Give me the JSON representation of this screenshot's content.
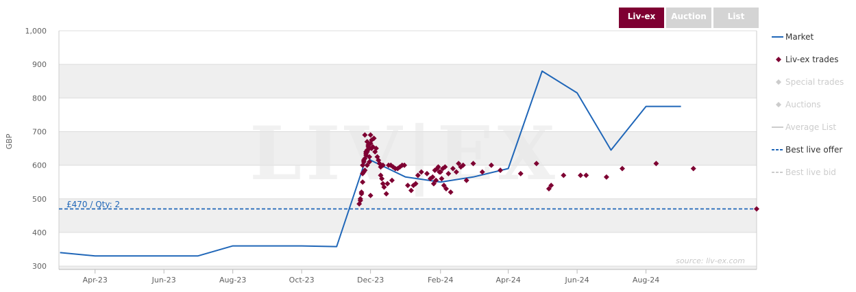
{
  "tabs": [
    {
      "label": "Liv-ex",
      "active": true
    },
    {
      "label": "Auction",
      "active": false
    },
    {
      "label": "List",
      "active": false
    }
  ],
  "legend": [
    {
      "label": "Market",
      "symbol": "line",
      "color": "#1f66b8",
      "enabled": true
    },
    {
      "label": "Liv-ex trades",
      "symbol": "diamond",
      "color": "#7e0032",
      "enabled": true
    },
    {
      "label": "Special trades",
      "symbol": "diamond",
      "color": "#cccccc",
      "enabled": false
    },
    {
      "label": "Auctions",
      "symbol": "diamond",
      "color": "#cccccc",
      "enabled": false
    },
    {
      "label": "Average List",
      "symbol": "line",
      "color": "#cccccc",
      "enabled": false
    },
    {
      "label": "Best live offer",
      "symbol": "dashed",
      "color": "#1f66b8",
      "enabled": true
    },
    {
      "label": "Best live bid",
      "symbol": "dashed",
      "color": "#cccccc",
      "enabled": false
    }
  ],
  "watermark": "LIV|EX",
  "source": "source: liv-ex.com",
  "offer_label": "£470 / Qty: 2",
  "chart_data": {
    "type": "line",
    "ylabel": "GBP",
    "ylim": [
      290,
      1000
    ],
    "yticks": [
      300,
      400,
      500,
      600,
      700,
      800,
      900,
      1000
    ],
    "ytick_labels": [
      "300",
      "400",
      "500",
      "600",
      "700",
      "800",
      "900",
      "1,000"
    ],
    "xlim": [
      "2023-02-28",
      "2024-11-07"
    ],
    "xticks": [
      "2023-04-01",
      "2023-06-01",
      "2023-08-01",
      "2023-10-01",
      "2023-12-01",
      "2024-02-01",
      "2024-04-01",
      "2024-06-01",
      "2024-08-01"
    ],
    "xtick_labels": [
      "Apr-23",
      "Jun-23",
      "Aug-23",
      "Oct-23",
      "Dec-23",
      "Feb-24",
      "Apr-24",
      "Jun-24",
      "Aug-24"
    ],
    "grid": true,
    "legend_position": "right",
    "series": [
      {
        "name": "Market",
        "type": "line",
        "color": "#1f66b8",
        "x": [
          "2023-03-01",
          "2023-04-01",
          "2023-05-01",
          "2023-06-01",
          "2023-07-01",
          "2023-08-01",
          "2023-09-01",
          "2023-10-01",
          "2023-11-01",
          "2023-11-28",
          "2023-12-01",
          "2024-01-01",
          "2024-02-01",
          "2024-03-01",
          "2024-04-01",
          "2024-05-01",
          "2024-06-01",
          "2024-07-01",
          "2024-08-01",
          "2024-09-01"
        ],
        "y": [
          340,
          330,
          330,
          330,
          330,
          360,
          360,
          360,
          358,
          630,
          615,
          565,
          550,
          565,
          590,
          880,
          815,
          645,
          775,
          775
        ]
      },
      {
        "name": "Liv-ex trades",
        "type": "scatter",
        "color": "#7e0032",
        "x": [
          "2023-11-21",
          "2023-11-22",
          "2023-11-23",
          "2023-11-24",
          "2023-11-25",
          "2023-11-26",
          "2023-11-27",
          "2023-11-28",
          "2023-11-29",
          "2023-11-30",
          "2023-12-01",
          "2023-11-22",
          "2023-11-24",
          "2023-11-26",
          "2023-11-28",
          "2023-11-30",
          "2023-12-02",
          "2023-11-23",
          "2023-11-25",
          "2023-11-27",
          "2023-11-29",
          "2023-12-01",
          "2023-12-03",
          "2023-11-24",
          "2023-11-26",
          "2023-11-28",
          "2023-11-30",
          "2023-12-02",
          "2023-12-04",
          "2023-11-25",
          "2023-11-27",
          "2023-11-29",
          "2023-12-01",
          "2023-11-28",
          "2023-11-30",
          "2023-12-05",
          "2023-12-06",
          "2023-12-07",
          "2023-12-08",
          "2023-12-09",
          "2023-12-10",
          "2023-12-11",
          "2023-12-12",
          "2023-12-13",
          "2023-12-15",
          "2023-12-17",
          "2023-12-19",
          "2023-12-21",
          "2023-12-23",
          "2023-12-10",
          "2023-12-12",
          "2023-12-16",
          "2023-12-20",
          "2023-12-25",
          "2023-12-27",
          "2023-12-29",
          "2023-12-31",
          "2024-01-03",
          "2024-01-06",
          "2024-01-08",
          "2024-01-10",
          "2024-01-12",
          "2024-01-15",
          "2024-01-20",
          "2024-01-23",
          "2024-01-25",
          "2024-01-27",
          "2024-01-29",
          "2024-01-31",
          "2024-02-02",
          "2024-02-04",
          "2024-02-06",
          "2024-02-08",
          "2024-02-10",
          "2024-02-12",
          "2024-01-26",
          "2024-01-28",
          "2024-01-30",
          "2024-02-01",
          "2024-02-03",
          "2024-02-05",
          "2024-02-15",
          "2024-02-17",
          "2024-02-19",
          "2024-02-21",
          "2024-02-24",
          "2024-03-01",
          "2024-03-09",
          "2024-03-17",
          "2024-03-25",
          "2024-04-12",
          "2024-04-26",
          "2024-05-07",
          "2024-05-09",
          "2024-05-20",
          "2024-06-04",
          "2024-06-09",
          "2024-06-27",
          "2024-07-11",
          "2024-08-10",
          "2024-09-12"
        ],
        "y": [
          485,
          500,
          520,
          575,
          610,
          690,
          630,
          640,
          655,
          610,
          510,
          495,
          550,
          585,
          600,
          625,
          650,
          515,
          580,
          640,
          660,
          665,
          655,
          600,
          620,
          645,
          650,
          675,
          680,
          615,
          635,
          660,
          690,
          670,
          650,
          640,
          650,
          625,
          615,
          605,
          570,
          560,
          545,
          535,
          515,
          600,
          600,
          595,
          590,
          595,
          600,
          545,
          555,
          590,
          595,
          600,
          600,
          540,
          525,
          540,
          545,
          570,
          580,
          575,
          560,
          565,
          585,
          590,
          580,
          560,
          540,
          530,
          575,
          520,
          590,
          545,
          555,
          595,
          580,
          590,
          595,
          580,
          605,
          595,
          600,
          555,
          605,
          580,
          600,
          585,
          575,
          605,
          530,
          540,
          570,
          570,
          570,
          565,
          590,
          605,
          590
        ]
      },
      {
        "name": "Best live offer",
        "type": "hline",
        "color": "#1f66b8",
        "value": 470
      }
    ]
  }
}
